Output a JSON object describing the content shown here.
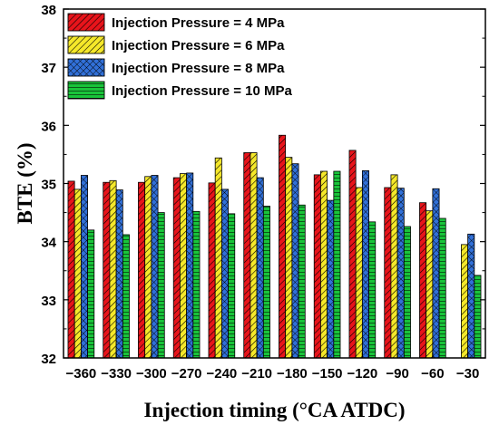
{
  "chart_data": {
    "type": "bar",
    "xlabel": "Injection timing (°CA ATDC)",
    "ylabel": "BTE (%)",
    "ylim": [
      32,
      38
    ],
    "yticks": [
      32,
      33,
      34,
      35,
      36,
      37,
      38
    ],
    "categories": [
      "−360",
      "−330",
      "−300",
      "−270",
      "−240",
      "−210",
      "−180",
      "−150",
      "−120",
      "−90",
      "−60",
      "−30"
    ],
    "legend_position": "top-left",
    "series": [
      {
        "name": "Injection Pressure = 4 MPa",
        "color": "#e8141b",
        "pattern": "hatch-diagonal",
        "values": [
          35.04,
          35.02,
          35.02,
          35.1,
          35.01,
          35.53,
          35.83,
          35.15,
          35.57,
          34.93,
          34.67,
          null
        ]
      },
      {
        "name": "Injection Pressure = 6 MPa",
        "color": "#f5e82a",
        "pattern": "hatch-diagonal",
        "values": [
          34.9,
          35.05,
          35.12,
          35.17,
          35.44,
          35.53,
          35.45,
          35.21,
          34.93,
          35.15,
          34.53,
          33.95
        ]
      },
      {
        "name": "Injection Pressure = 8 MPa",
        "color": "#3170d8",
        "pattern": "crosshatch",
        "values": [
          35.14,
          34.89,
          35.14,
          35.18,
          34.9,
          35.1,
          35.34,
          34.71,
          35.22,
          34.92,
          34.91,
          34.13
        ]
      },
      {
        "name": "Injection Pressure = 10 MPa",
        "color": "#19c43a",
        "pattern": "horizontal",
        "values": [
          34.2,
          34.12,
          34.5,
          34.52,
          34.48,
          34.61,
          34.63,
          35.21,
          34.34,
          34.26,
          34.4,
          33.42
        ]
      }
    ]
  }
}
